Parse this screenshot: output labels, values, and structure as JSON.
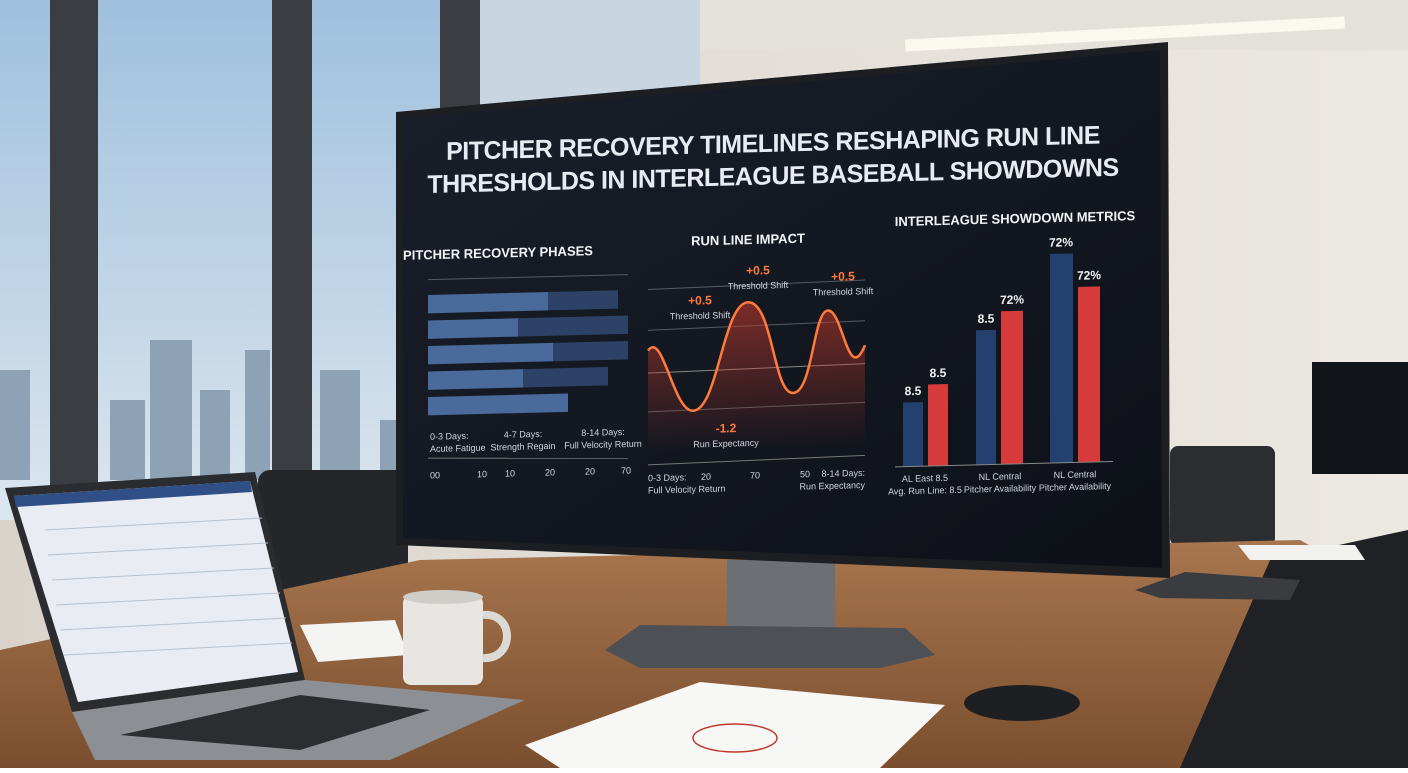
{
  "screen": {
    "title_lines": [
      "PITCHER RECOVERY TIMELINES RESHAPING RUN LINE",
      "THRESHOLDS IN INTERLEAGUE BASEBALL SHOWDOWNS"
    ],
    "panels": [
      {
        "title": "PITCHER RECOVERY PHASES",
        "labels": [
          "0-3 Days:",
          "Acute Fatigue",
          "4-7 Days:",
          "Strength Regain",
          "8-14 Days:",
          "Full Velocity Return"
        ],
        "axis_labels": [
          "00",
          "10",
          "10",
          "20",
          "20",
          "70"
        ]
      },
      {
        "title": "RUN LINE IMPACT",
        "annotations": [
          "+0.5",
          "Threshold Shift",
          "+0.5",
          "Threshold Shift",
          "+0.5",
          "Threshold Shift",
          "-1.2",
          "Run Expectancy"
        ],
        "axis_labels": [
          "0-3 Days:",
          "Full Velocity Return",
          "20",
          "70",
          "50",
          "8-14 Days:",
          "Run Expectancy"
        ]
      },
      {
        "title": "INTERLEAGUE SHOWDOWN METRICS",
        "bar_labels": [
          "8.5",
          "8.5",
          "8.5",
          "72%",
          "72%",
          "72%"
        ],
        "groups": [
          "AL East 8.5",
          "Avg. Run Line: 8.5",
          "NL Central",
          "Pitcher Availability",
          "NL Central",
          "Pitcher Availability"
        ]
      }
    ]
  }
}
